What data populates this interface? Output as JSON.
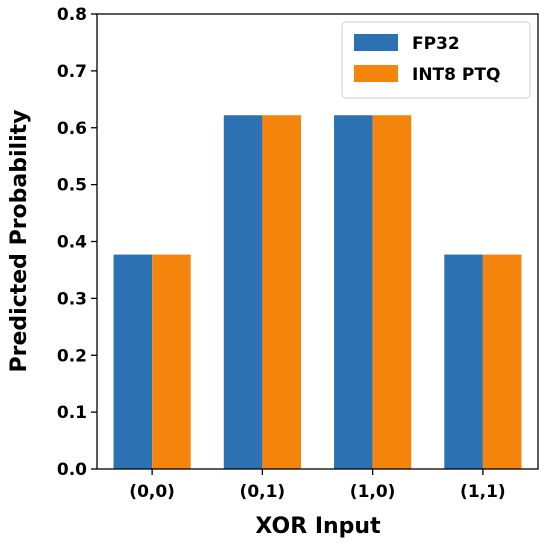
{
  "chart_data": {
    "type": "bar",
    "title": "",
    "xlabel": "XOR Input",
    "ylabel": "Predicted Probability",
    "categories": [
      "(0,0)",
      "(0,1)",
      "(1,0)",
      "(1,1)"
    ],
    "series": [
      {
        "name": "FP32",
        "values": [
          0.377,
          0.622,
          0.622,
          0.377
        ],
        "color": "#2c71b2"
      },
      {
        "name": "INT8 PTQ",
        "values": [
          0.377,
          0.622,
          0.622,
          0.377
        ],
        "color": "#f5840c"
      }
    ],
    "ylim": [
      0,
      0.8
    ],
    "yticks": [
      "0.0",
      "0.1",
      "0.2",
      "0.3",
      "0.4",
      "0.5",
      "0.6",
      "0.7",
      "0.8"
    ],
    "grid": false,
    "legend_position": "upper right"
  }
}
